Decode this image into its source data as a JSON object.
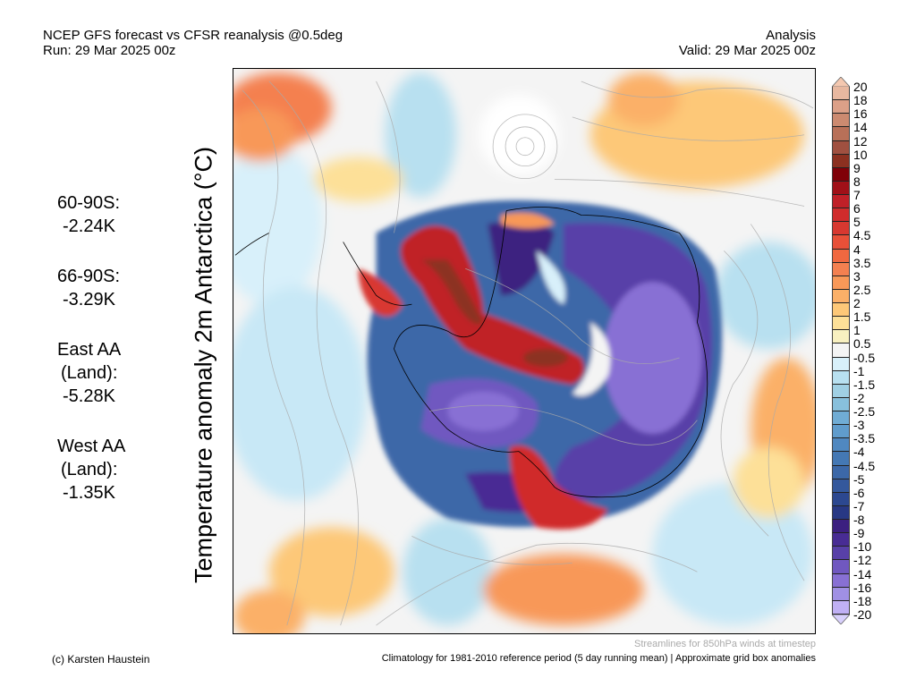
{
  "header": {
    "title_line1": "NCEP GFS forecast vs CFSR reanalysis @0.5deg",
    "title_line2": "Run: 29 Mar 2025 00z",
    "right_line1": "Analysis",
    "right_line2": "Valid: 29 Mar 2025 00z"
  },
  "y_axis_label": "Temperature anomaly 2m Antarctica (°C)",
  "stats": [
    {
      "label": "60-90S:",
      "value": "-2.24K"
    },
    {
      "label": "66-90S:",
      "value": "-3.29K"
    },
    {
      "label": "East AA",
      "label2": "(Land):",
      "value": "-5.28K"
    },
    {
      "label": "West AA",
      "label2": "(Land):",
      "value": "-1.35K"
    }
  ],
  "colorbar": {
    "labels": [
      "20",
      "18",
      "16",
      "14",
      "12",
      "10",
      "9",
      "8",
      "7",
      "6",
      "5",
      "4.5",
      "4",
      "3.5",
      "3",
      "2.5",
      "2",
      "1.5",
      "1",
      "0.5",
      "-0.5",
      "-1",
      "-1.5",
      "-2",
      "-2.5",
      "-3",
      "-3.5",
      "-4",
      "-4.5",
      "-5",
      "-6",
      "-7",
      "-8",
      "-9",
      "-10",
      "-12",
      "-14",
      "-16",
      "-18",
      "-20"
    ],
    "over_color": "#f4c8b0",
    "under_color": "#d8d0fc",
    "colors": [
      "#e8b8a0",
      "#dca088",
      "#cc8a70",
      "#b87058",
      "#a05040",
      "#8c3020",
      "#800008",
      "#a01018",
      "#c02028",
      "#d02c2c",
      "#d83830",
      "#e85038",
      "#f06840",
      "#f48050",
      "#f89858",
      "#fbb068",
      "#fdc878",
      "#fde098",
      "#f8f0c0",
      "#f4f4f4",
      "#d8f0fa",
      "#b8e0f0",
      "#a0d0e4",
      "#88c0dc",
      "#70acd4",
      "#609ccc",
      "#5088c0",
      "#4478b4",
      "#3c68a8",
      "#34589c",
      "#2c4890",
      "#283884",
      "#3c2080",
      "#482c94",
      "#5840a8",
      "#7058c0",
      "#8870d4",
      "#a090e4",
      "#c0b0f4"
    ]
  },
  "footer": {
    "streamlines_note": "Streamlines for 850hPa winds at timestep",
    "climatology_note": "Climatology for 1981-2010 reference period (5 day running mean) | Approximate grid box anomalies",
    "credit": "(c) Karsten Haustein"
  }
}
